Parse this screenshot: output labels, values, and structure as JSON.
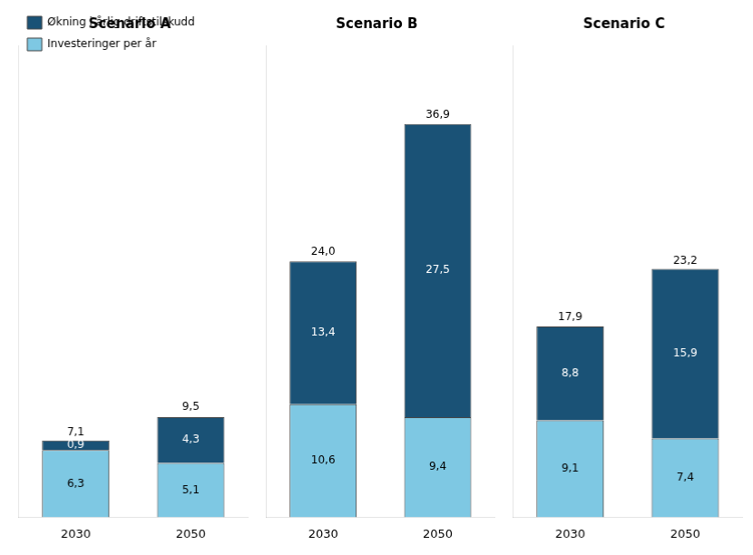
{
  "chart_data": [
    {
      "type": "bar",
      "title": "Scenario A",
      "categories": [
        "2030",
        "2050"
      ],
      "stacked": true,
      "series": [
        {
          "name": "Investeringer per år",
          "color": "#7ec8e3",
          "values": [
            6.3,
            5.1
          ],
          "value_labels": [
            "6,3",
            "5,1"
          ]
        },
        {
          "name": "Økning i årlig driftstilskudd",
          "color": "#1a5276",
          "values": [
            0.9,
            4.3
          ],
          "value_labels": [
            "0,9",
            "4,3"
          ]
        }
      ],
      "totals": [
        7.1,
        9.5
      ],
      "total_labels": [
        "7,1",
        "9,5"
      ],
      "ylim": [
        0,
        44.28
      ],
      "grid": false,
      "legend": "upper left",
      "data_labels": true,
      "tick_labels": "x"
    },
    {
      "type": "bar",
      "title": "Scenario B",
      "categories": [
        "2030",
        "2050"
      ],
      "stacked": true,
      "series": [
        {
          "name": "Investeringer per år",
          "color": "#7ec8e3",
          "values": [
            10.6,
            9.4
          ],
          "value_labels": [
            "10,6",
            "9,4"
          ]
        },
        {
          "name": "Økning i årlig driftstilskudd",
          "color": "#1a5276",
          "values": [
            13.4,
            27.5
          ],
          "value_labels": [
            "13,4",
            "27,5"
          ]
        }
      ],
      "totals": [
        24.0,
        36.9
      ],
      "total_labels": [
        "24,0",
        "36,9"
      ],
      "ylim": [
        0,
        44.28
      ],
      "grid": false,
      "legend": false,
      "data_labels": true,
      "tick_labels": "x"
    },
    {
      "type": "bar",
      "title": "Scenario C",
      "categories": [
        "2030",
        "2050"
      ],
      "stacked": true,
      "series": [
        {
          "name": "Investeringer per år",
          "color": "#7ec8e3",
          "values": [
            9.1,
            7.4
          ],
          "value_labels": [
            "9,1",
            "7,4"
          ]
        },
        {
          "name": "Økning i årlig driftstilskudd",
          "color": "#1a5276",
          "values": [
            8.8,
            15.9
          ],
          "value_labels": [
            "8,8",
            "15,9"
          ]
        }
      ],
      "totals": [
        17.9,
        23.2
      ],
      "total_labels": [
        "17,9",
        "23,2"
      ],
      "ylim": [
        0,
        44.28
      ],
      "grid": false,
      "legend": false,
      "data_labels": true,
      "tick_labels": "x"
    }
  ]
}
